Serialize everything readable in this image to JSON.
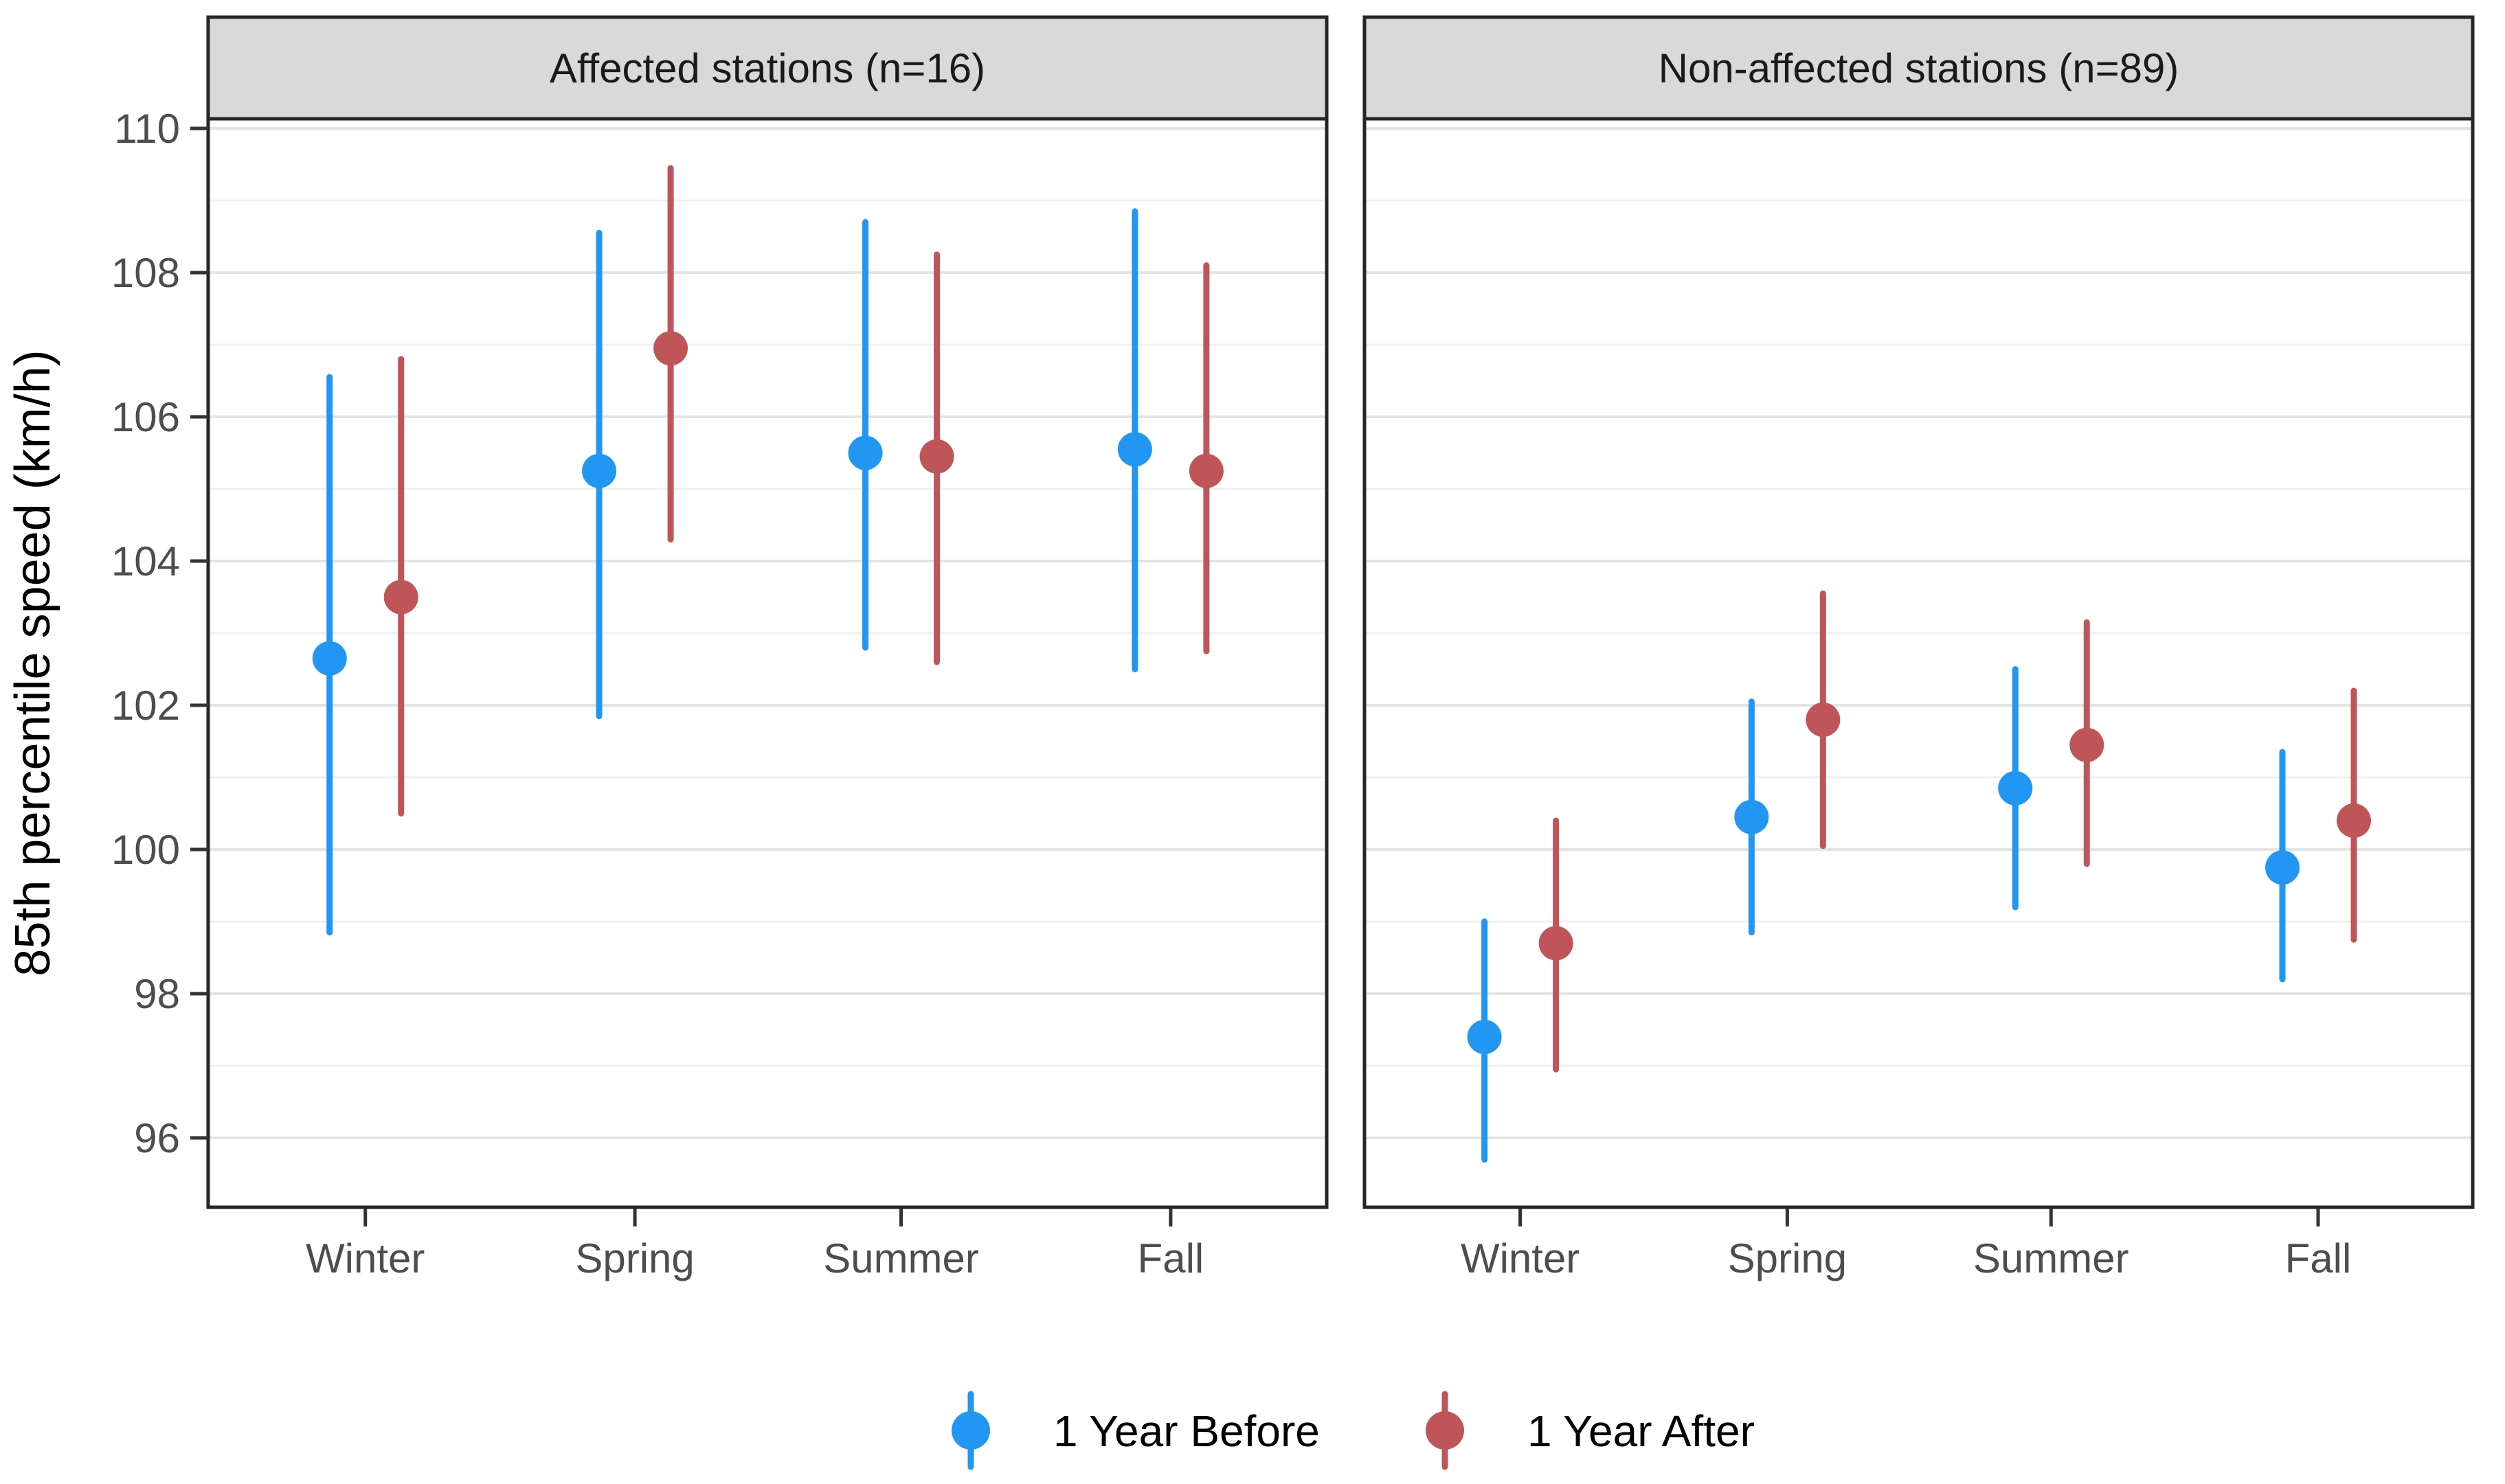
{
  "figure": {
    "panel_titles": [
      "Affected stations (n=16)",
      "Non-affected stations (n=89)"
    ],
    "y_axis_title": "85th percentile speed (km/h)",
    "y_tick_labels": [
      "96",
      "98",
      "100",
      "102",
      "104",
      "106",
      "108",
      "110"
    ],
    "x_tick_labels": [
      "Winter",
      "Spring",
      "Summer",
      "Fall"
    ],
    "legend_labels": [
      "1 Year Before",
      "1 Year After"
    ],
    "colors": {
      "before": "#2196F3",
      "after": "#C05559",
      "strip_fill": "#D9D9D9",
      "panel_border": "#262626",
      "grid_major": "#E4E4E4",
      "grid_minor": "#F0F0F0",
      "tick_text": "#4D4D4D",
      "tick_mark": "#333333",
      "title_text": "#1A1A1A"
    }
  },
  "chart_data": {
    "type": "pointrange",
    "title": "",
    "xlabel": "",
    "ylabel": "85th percentile speed (km/h)",
    "ylim": [
      95.0,
      110.15
    ],
    "y_major_ticks": [
      96,
      98,
      100,
      102,
      104,
      106,
      108,
      110
    ],
    "y_minor_ticks": [
      97,
      99,
      101,
      103,
      105,
      107,
      109
    ],
    "grid": "horizontal major + minor, 1 km/h spacing",
    "legend_position": "bottom",
    "categories": [
      "Winter",
      "Spring",
      "Summer",
      "Fall"
    ],
    "facets": [
      {
        "label": "Affected stations (n=16)",
        "series": [
          {
            "name": "1 Year Before",
            "color": "#2196F3",
            "values": [
              102.65,
              105.25,
              105.5,
              105.55
            ],
            "lower": [
              98.85,
              101.85,
              102.8,
              102.5
            ],
            "upper": [
              106.55,
              108.55,
              108.7,
              108.85
            ]
          },
          {
            "name": "1 Year After",
            "color": "#C05559",
            "values": [
              103.5,
              106.95,
              105.45,
              105.25
            ],
            "lower": [
              100.5,
              104.3,
              102.6,
              102.75
            ],
            "upper": [
              106.8,
              109.45,
              108.25,
              108.1
            ]
          }
        ]
      },
      {
        "label": "Non-affected stations (n=89)",
        "series": [
          {
            "name": "1 Year Before",
            "color": "#2196F3",
            "values": [
              97.4,
              100.45,
              100.85,
              99.75
            ],
            "lower": [
              95.7,
              98.85,
              99.2,
              98.2
            ],
            "upper": [
              99.0,
              102.05,
              102.5,
              101.35
            ]
          },
          {
            "name": "1 Year After",
            "color": "#C05559",
            "values": [
              98.7,
              101.8,
              101.45,
              100.4
            ],
            "lower": [
              96.95,
              100.05,
              99.8,
              98.75
            ],
            "upper": [
              100.4,
              103.55,
              103.15,
              102.2
            ]
          }
        ]
      }
    ]
  }
}
